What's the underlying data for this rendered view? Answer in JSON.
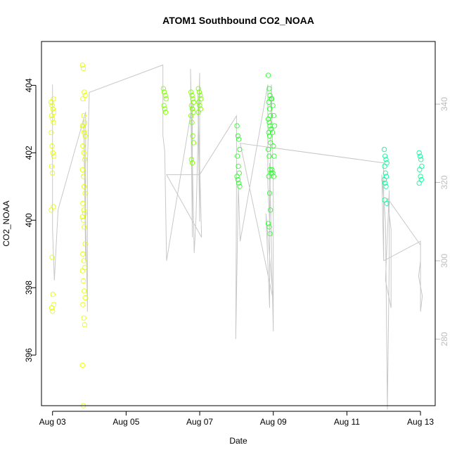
{
  "chart_data": {
    "type": "scatter",
    "title": "ATOM1 Southbound CO2_NOAA",
    "xlabel": "Date",
    "ylabel": "CO2_NOAA",
    "x_tick_labels": [
      "Aug 03",
      "Aug 05",
      "Aug 07",
      "Aug 09",
      "Aug 11",
      "Aug 13"
    ],
    "x_tick_values": [
      0,
      2,
      4,
      6,
      8,
      10
    ],
    "xlim": [
      -0.3,
      10.4
    ],
    "ylim": [
      394.5,
      405.3
    ],
    "y_ticks": [
      396,
      398,
      400,
      402,
      404
    ],
    "y2_ticks": [
      280,
      300,
      320,
      340
    ],
    "y2lim": [
      263,
      356
    ],
    "colors": {
      "frame": "#000000",
      "right_axis": "#bdbdbd",
      "line": "#c8c8c8"
    },
    "series": [
      {
        "color": "#e5ff00",
        "clusters": [
          {
            "x": 0.0,
            "values": [
              403.5,
              403.4,
              403.3,
              403.2,
              403.1,
              403.0,
              402.9,
              402.6,
              402.2,
              402.0,
              401.9,
              401.6,
              401.4,
              400.4,
              400.3,
              398.9,
              397.8,
              397.5,
              397.4,
              397.3,
              403.6,
              403.5
            ]
          },
          {
            "x": 0.85,
            "values": [
              404.6,
              404.5,
              403.8,
              403.7,
              403.6,
              403.1,
              402.9,
              402.8,
              402.7,
              402.6,
              402.5,
              402.2,
              402.0,
              401.8,
              401.5,
              401.3,
              401.0,
              400.8,
              400.5,
              400.3,
              400.2,
              400.1,
              400.0,
              399.8,
              399.3,
              399.0,
              398.8,
              398.6,
              398.5,
              398.2,
              397.9,
              397.7,
              397.5,
              397.1,
              396.9,
              395.7,
              394.5
            ]
          }
        ]
      },
      {
        "color": "#7fff00",
        "clusters": [
          {
            "x": 3.05,
            "values": [
              403.9,
              403.8,
              403.7,
              403.6,
              403.4,
              403.3,
              403.2
            ]
          },
          {
            "x": 3.8,
            "values": [
              403.8,
              403.7,
              403.6,
              403.5,
              403.4,
              403.3,
              403.2,
              403.1,
              402.9,
              402.5,
              402.3,
              401.8,
              401.7
            ]
          },
          {
            "x": 4.0,
            "values": [
              403.9,
              403.8,
              403.7,
              403.6,
              403.5,
              403.4,
              403.3,
              403.2
            ]
          }
        ]
      },
      {
        "color": "#2bff2b",
        "clusters": [
          {
            "x": 5.05,
            "values": [
              402.8,
              402.5,
              402.4,
              402.1,
              401.9,
              401.6,
              401.4,
              401.3,
              401.2,
              401.1,
              401.0
            ]
          },
          {
            "x": 5.9,
            "values": [
              404.3,
              403.9,
              403.7,
              403.6,
              403.5,
              403.3,
              403.1,
              403.0,
              402.9,
              402.8,
              402.7,
              402.6,
              402.5,
              402.3,
              402.1,
              401.9,
              401.5,
              401.4,
              401.3,
              400.8,
              400.3,
              399.9,
              399.8,
              399.6
            ]
          },
          {
            "x": 6.0,
            "values": [
              403.6,
              403.4,
              403.1,
              402.8,
              402.6,
              402.2,
              401.9,
              401.5,
              401.4,
              401.3
            ]
          }
        ]
      },
      {
        "color": "#00ff99",
        "clusters": [
          {
            "x": 9.05,
            "values": [
              402.1,
              401.9,
              401.8,
              401.7,
              401.6,
              401.4,
              401.3,
              401.2,
              401.1,
              401.0,
              400.5,
              400.6
            ]
          },
          {
            "x": 10.0,
            "values": [
              402.0,
              401.9,
              401.8,
              401.6,
              401.5,
              401.3,
              401.2,
              401.1
            ]
          }
        ]
      }
    ],
    "secondary_line": {
      "x": [
        0.0,
        0.0,
        0.05,
        0.15,
        0.9,
        0.9,
        0.85,
        0.95,
        0.95,
        1.0,
        3.0,
        3.0,
        3.05,
        3.1,
        3.8,
        3.8,
        3.75,
        3.85,
        3.9,
        4.0,
        4.0,
        3.95,
        4.05,
        3.1,
        3.1,
        4.0,
        4.0,
        5.0,
        5.0,
        4.98,
        5.05,
        5.1,
        5.85,
        5.85,
        5.9,
        5.95,
        6.0,
        6.0,
        5.9,
        5.9,
        5.8,
        6.0,
        5.1,
        5.1,
        9.0,
        9.0,
        8.95,
        9.05,
        9.1,
        9.15,
        9.15,
        9.05,
        9.2,
        9.2,
        9.1,
        10.0,
        10.0,
        9.95,
        10.05,
        10.0,
        10.0,
        9.0
      ],
      "y2": [
        345,
        308,
        295,
        313,
        338,
        300,
        336,
        287,
        325,
        343,
        350,
        332,
        328,
        300,
        340,
        306,
        349,
        302,
        311,
        348,
        310,
        342,
        306,
        322,
        322,
        322,
        322,
        337,
        320,
        280,
        319,
        305,
        345,
        320,
        310,
        345,
        318,
        282,
        325,
        288,
        312,
        290,
        330,
        330,
        325,
        300,
        322,
        310,
        262,
        300,
        318,
        295,
        288,
        308,
        316,
        304,
        300,
        296,
        291,
        287,
        305,
        300
      ]
    }
  }
}
